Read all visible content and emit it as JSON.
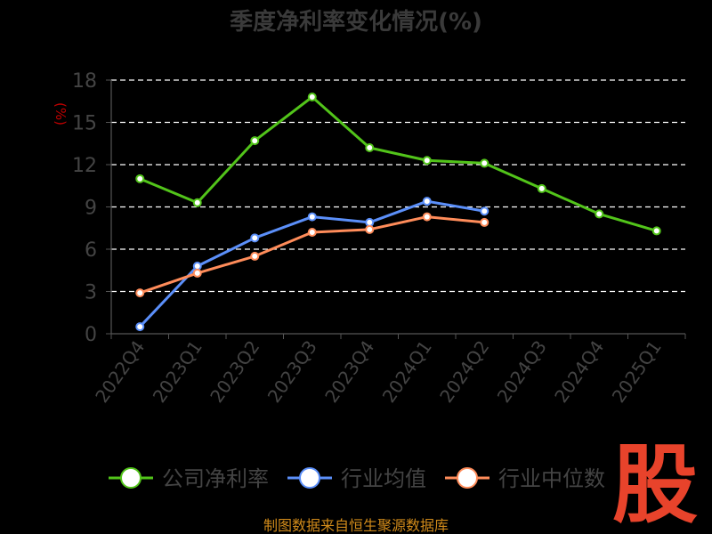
{
  "chart_data": {
    "type": "line",
    "title": "季度净利率变化情况(%)",
    "ylabel": "(%)",
    "ylim": [
      0,
      18
    ],
    "yticks": [
      0,
      3,
      6,
      9,
      12,
      15,
      18
    ],
    "grid": true,
    "legend_position": "bottom",
    "categories": [
      "2022Q4",
      "2023Q1",
      "2023Q2",
      "2023Q3",
      "2023Q4",
      "2024Q1",
      "2024Q2",
      "2024Q3",
      "2024Q4",
      "2025Q1"
    ],
    "series": [
      {
        "name": "公司净利率",
        "color": "#52c41a",
        "values": [
          11.0,
          9.3,
          13.7,
          16.8,
          13.2,
          12.3,
          12.1,
          10.3,
          8.5,
          7.3
        ]
      },
      {
        "name": "行业均值",
        "color": "#5b8ff9",
        "values": [
          0.5,
          4.8,
          6.8,
          8.3,
          7.9,
          9.4,
          8.7,
          null,
          null,
          null
        ]
      },
      {
        "name": "行业中位数",
        "color": "#ff8c5a",
        "values": [
          2.9,
          4.3,
          5.5,
          7.2,
          7.4,
          8.3,
          7.9,
          null,
          null,
          null
        ]
      }
    ]
  },
  "source_text": "制图数据来自恒生聚源数据库",
  "logo_text": "股"
}
